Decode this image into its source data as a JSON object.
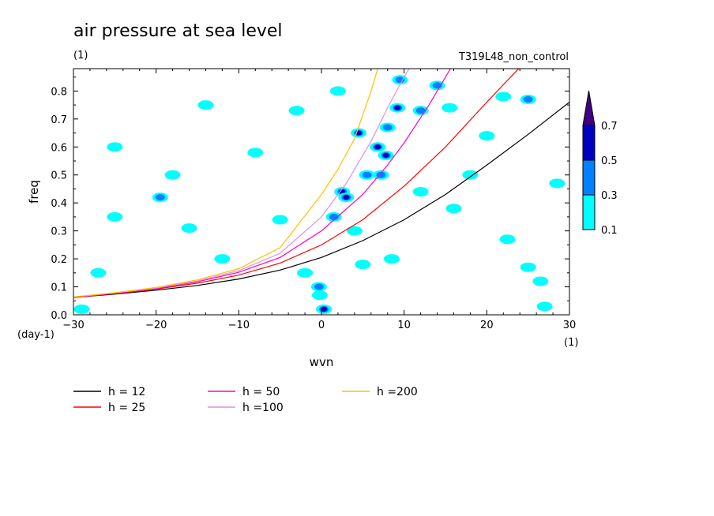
{
  "chart_data": {
    "type": "contour",
    "title": "air pressure at sea level",
    "subtitle": "(1)",
    "experiment": "T319L48_non_control",
    "xlabel": "wvn",
    "ylabel": "freq",
    "x_unit": "(1)",
    "y_unit": "(day-1)",
    "xlim": [
      -30,
      30
    ],
    "ylim": [
      0,
      0.88
    ],
    "xticks": [
      "-30",
      "-20",
      "-10",
      "0",
      "10",
      "20",
      "30"
    ],
    "yticks": [
      "0.0",
      "0.1",
      "0.2",
      "0.3",
      "0.4",
      "0.5",
      "0.6",
      "0.7",
      "0.8"
    ],
    "colorbar": {
      "labels": [
        "0.1",
        "0.3",
        "0.5",
        "0.7"
      ],
      "levels": [
        0.1,
        0.3,
        0.5,
        0.7
      ],
      "colors": [
        "#00ffff",
        "#0080ff",
        "#0000c0",
        "#400080"
      ]
    },
    "series": [
      {
        "name": "h = 12",
        "color": "#000000",
        "x": [
          -30,
          -25,
          -20,
          -15,
          -10,
          -5,
          0,
          5,
          10,
          15,
          20,
          25,
          30
        ],
        "y": [
          0.062,
          0.074,
          0.088,
          0.105,
          0.128,
          0.16,
          0.205,
          0.265,
          0.34,
          0.43,
          0.535,
          0.645,
          0.76
        ]
      },
      {
        "name": "h = 25",
        "color": "#ff0000",
        "x": [
          -30,
          -25,
          -20,
          -15,
          -10,
          -5,
          0,
          5,
          10,
          15,
          20,
          24.5
        ],
        "y": [
          0.062,
          0.076,
          0.092,
          0.113,
          0.142,
          0.185,
          0.25,
          0.34,
          0.46,
          0.6,
          0.76,
          0.9
        ]
      },
      {
        "name": "h = 50",
        "color": "#ff00c0",
        "x": [
          -30,
          -25,
          -20,
          -15,
          -10,
          -5,
          0,
          5,
          8,
          10,
          13,
          16
        ],
        "y": [
          0.063,
          0.077,
          0.094,
          0.118,
          0.152,
          0.205,
          0.3,
          0.43,
          0.535,
          0.615,
          0.75,
          0.9
        ]
      },
      {
        "name": "h =100",
        "color": "#e090e0",
        "x": [
          -30,
          -25,
          -20,
          -15,
          -10,
          -5,
          0,
          3,
          6,
          8,
          10,
          11
        ],
        "y": [
          0.064,
          0.078,
          0.096,
          0.121,
          0.158,
          0.22,
          0.35,
          0.47,
          0.62,
          0.74,
          0.85,
          0.9
        ]
      },
      {
        "name": "h =200",
        "color": "#ffc000",
        "x": [
          -30,
          -25,
          -20,
          -15,
          -10,
          -5,
          0,
          2,
          4,
          6,
          7
        ],
        "y": [
          0.064,
          0.079,
          0.098,
          0.125,
          0.165,
          0.24,
          0.43,
          0.52,
          0.63,
          0.8,
          0.9
        ]
      }
    ],
    "contour_blobs": [
      {
        "x": 0.3,
        "y": 0.02,
        "level": 0.7
      },
      {
        "x": -0.3,
        "y": 0.1,
        "level": 0.3
      },
      {
        "x": -0.2,
        "y": 0.07,
        "level": 0.1
      },
      {
        "x": 1.5,
        "y": 0.35,
        "level": 0.3
      },
      {
        "x": 2.5,
        "y": 0.44,
        "level": 0.5
      },
      {
        "x": 3.0,
        "y": 0.42,
        "level": 0.5
      },
      {
        "x": 4.5,
        "y": 0.65,
        "level": 0.5
      },
      {
        "x": 5.5,
        "y": 0.5,
        "level": 0.3
      },
      {
        "x": 6.8,
        "y": 0.6,
        "level": 0.5
      },
      {
        "x": 7.8,
        "y": 0.57,
        "level": 0.5
      },
      {
        "x": 8.0,
        "y": 0.67,
        "level": 0.3
      },
      {
        "x": 9.2,
        "y": 0.74,
        "level": 0.5
      },
      {
        "x": 9.5,
        "y": 0.84,
        "level": 0.3
      },
      {
        "x": 7.2,
        "y": 0.5,
        "level": 0.3
      },
      {
        "x": 12.0,
        "y": 0.73,
        "level": 0.3
      },
      {
        "x": 14.0,
        "y": 0.82,
        "level": 0.3
      },
      {
        "x": 15.5,
        "y": 0.74,
        "level": 0.1
      },
      {
        "x": 25.0,
        "y": 0.77,
        "level": 0.3
      },
      {
        "x": 22.0,
        "y": 0.78,
        "level": 0.1
      },
      {
        "x": -27.0,
        "y": 0.15,
        "level": 0.1
      },
      {
        "x": -25.0,
        "y": 0.35,
        "level": 0.1
      },
      {
        "x": -19.5,
        "y": 0.42,
        "level": 0.3
      },
      {
        "x": -18.0,
        "y": 0.5,
        "level": 0.1
      },
      {
        "x": -14.0,
        "y": 0.75,
        "level": 0.1
      },
      {
        "x": -5.0,
        "y": 0.34,
        "level": 0.1
      },
      {
        "x": -8.0,
        "y": 0.58,
        "level": 0.1
      },
      {
        "x": 2.0,
        "y": 0.8,
        "level": 0.1
      },
      {
        "x": 4.0,
        "y": 0.3,
        "level": 0.1
      },
      {
        "x": 5.0,
        "y": 0.18,
        "level": 0.1
      },
      {
        "x": -2.0,
        "y": 0.15,
        "level": 0.1
      },
      {
        "x": 22.5,
        "y": 0.27,
        "level": 0.1
      },
      {
        "x": 25.0,
        "y": 0.17,
        "level": 0.1
      },
      {
        "x": 28.5,
        "y": 0.47,
        "level": 0.1
      },
      {
        "x": 20.0,
        "y": 0.64,
        "level": 0.1
      },
      {
        "x": 27.0,
        "y": 0.03,
        "level": 0.1
      },
      {
        "x": 26.5,
        "y": 0.12,
        "level": 0.1
      },
      {
        "x": -29.0,
        "y": 0.02,
        "level": 0.1
      },
      {
        "x": -25.0,
        "y": 0.6,
        "level": 0.1
      },
      {
        "x": -12.0,
        "y": 0.2,
        "level": 0.1
      },
      {
        "x": 12.0,
        "y": 0.44,
        "level": 0.1
      },
      {
        "x": 16.0,
        "y": 0.38,
        "level": 0.1
      },
      {
        "x": 8.5,
        "y": 0.2,
        "level": 0.1
      },
      {
        "x": -3.0,
        "y": 0.73,
        "level": 0.1
      },
      {
        "x": -16.0,
        "y": 0.31,
        "level": 0.1
      },
      {
        "x": 18.0,
        "y": 0.5,
        "level": 0.1
      }
    ],
    "legend_position": "bottom-left",
    "grid": false
  }
}
